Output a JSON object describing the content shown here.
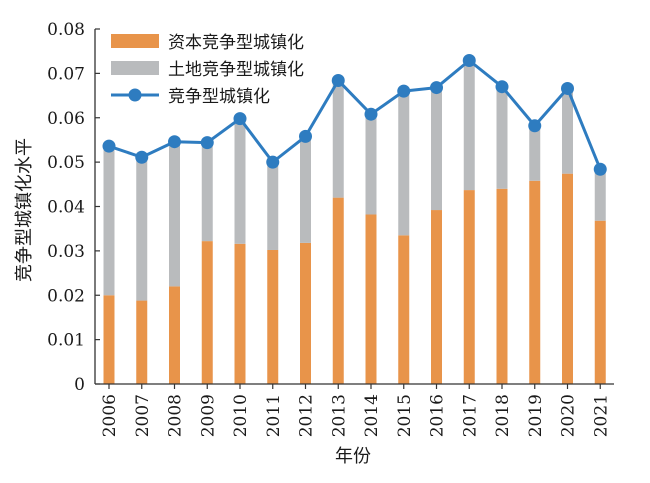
{
  "chart_data": {
    "type": "bar",
    "stacked": true,
    "xlabel": "年份",
    "ylabel": "竞争型城镇化水平",
    "ylim": [
      0,
      0.08
    ],
    "yticks": [
      "0",
      "0.01",
      "0.02",
      "0.03",
      "0.04",
      "0.05",
      "0.06",
      "0.07",
      "0.08"
    ],
    "categories": [
      "2006",
      "2007",
      "2008",
      "2009",
      "2010",
      "2011",
      "2012",
      "2013",
      "2014",
      "2015",
      "2016",
      "2017",
      "2018",
      "2019",
      "2020",
      "2021"
    ],
    "series": [
      {
        "name": "资本竞争型城镇化",
        "kind": "bar",
        "color": "#E8944A",
        "values": [
          0.02,
          0.0188,
          0.022,
          0.0322,
          0.0316,
          0.0302,
          0.0318,
          0.042,
          0.0382,
          0.0335,
          0.0392,
          0.0437,
          0.044,
          0.0458,
          0.0474,
          0.0368
        ]
      },
      {
        "name": "土地竞争型城镇化",
        "kind": "bar",
        "color": "#B9BBBD",
        "values": [
          0.0336,
          0.0323,
          0.0326,
          0.0222,
          0.0282,
          0.0198,
          0.024,
          0.0264,
          0.0226,
          0.0325,
          0.0276,
          0.0292,
          0.023,
          0.0124,
          0.0192,
          0.0116
        ]
      },
      {
        "name": "竞争型城镇化",
        "kind": "line",
        "color": "#2E7CC0",
        "values": [
          0.0536,
          0.0511,
          0.0546,
          0.0544,
          0.0598,
          0.05,
          0.0558,
          0.0684,
          0.0608,
          0.066,
          0.0668,
          0.0729,
          0.067,
          0.0582,
          0.0666,
          0.0484
        ]
      }
    ],
    "legend_position": "top-left",
    "grid": false
  }
}
